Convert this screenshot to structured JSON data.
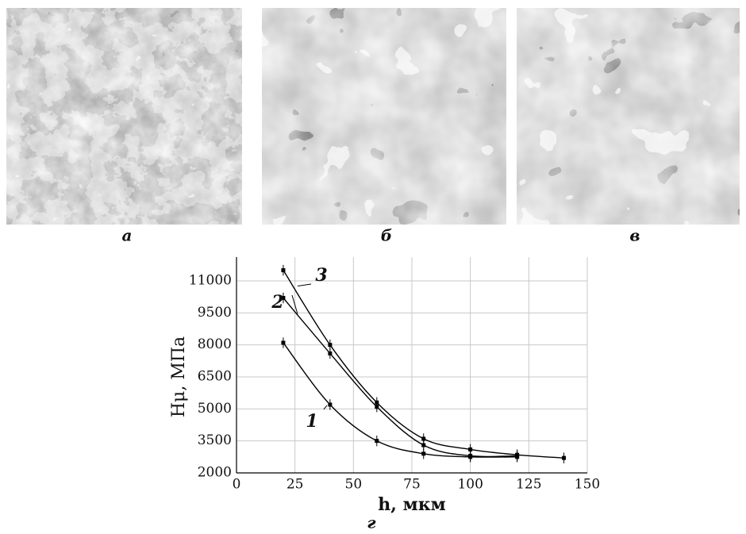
{
  "panels": [
    {
      "label": "а"
    },
    {
      "label": "б"
    },
    {
      "label": "в"
    }
  ],
  "chart_data": {
    "type": "line",
    "label": "г",
    "x_label": "h, мкм",
    "y_label": "Hμ, МПа",
    "xlim": [
      0,
      150
    ],
    "xticks": [
      0,
      25,
      50,
      75,
      100,
      125,
      150
    ],
    "ylim": [
      2000,
      11000
    ],
    "yticks": [
      2000,
      3500,
      5000,
      6500,
      8000,
      9500,
      11000
    ],
    "grid": true,
    "series": [
      {
        "name": "1",
        "color": "#000000",
        "x": [
          20,
          40,
          60,
          80,
          100,
          120
        ],
        "values": [
          8100,
          5200,
          3500,
          2900,
          2750,
          2750
        ],
        "errors": [
          250,
          250,
          250,
          250,
          250,
          250
        ]
      },
      {
        "name": "2",
        "color": "#000000",
        "x": [
          20,
          40,
          60,
          80,
          100,
          120
        ],
        "values": [
          10200,
          7600,
          5100,
          3300,
          2800,
          2800
        ],
        "errors": [
          250,
          250,
          250,
          250,
          250,
          250
        ]
      },
      {
        "name": "3",
        "color": "#000000",
        "x": [
          20,
          40,
          60,
          80,
          100,
          120,
          140
        ],
        "values": [
          11500,
          8000,
          5300,
          3600,
          3100,
          2850,
          2700
        ],
        "errors": [
          250,
          250,
          250,
          250,
          250,
          250,
          250
        ]
      }
    ]
  }
}
